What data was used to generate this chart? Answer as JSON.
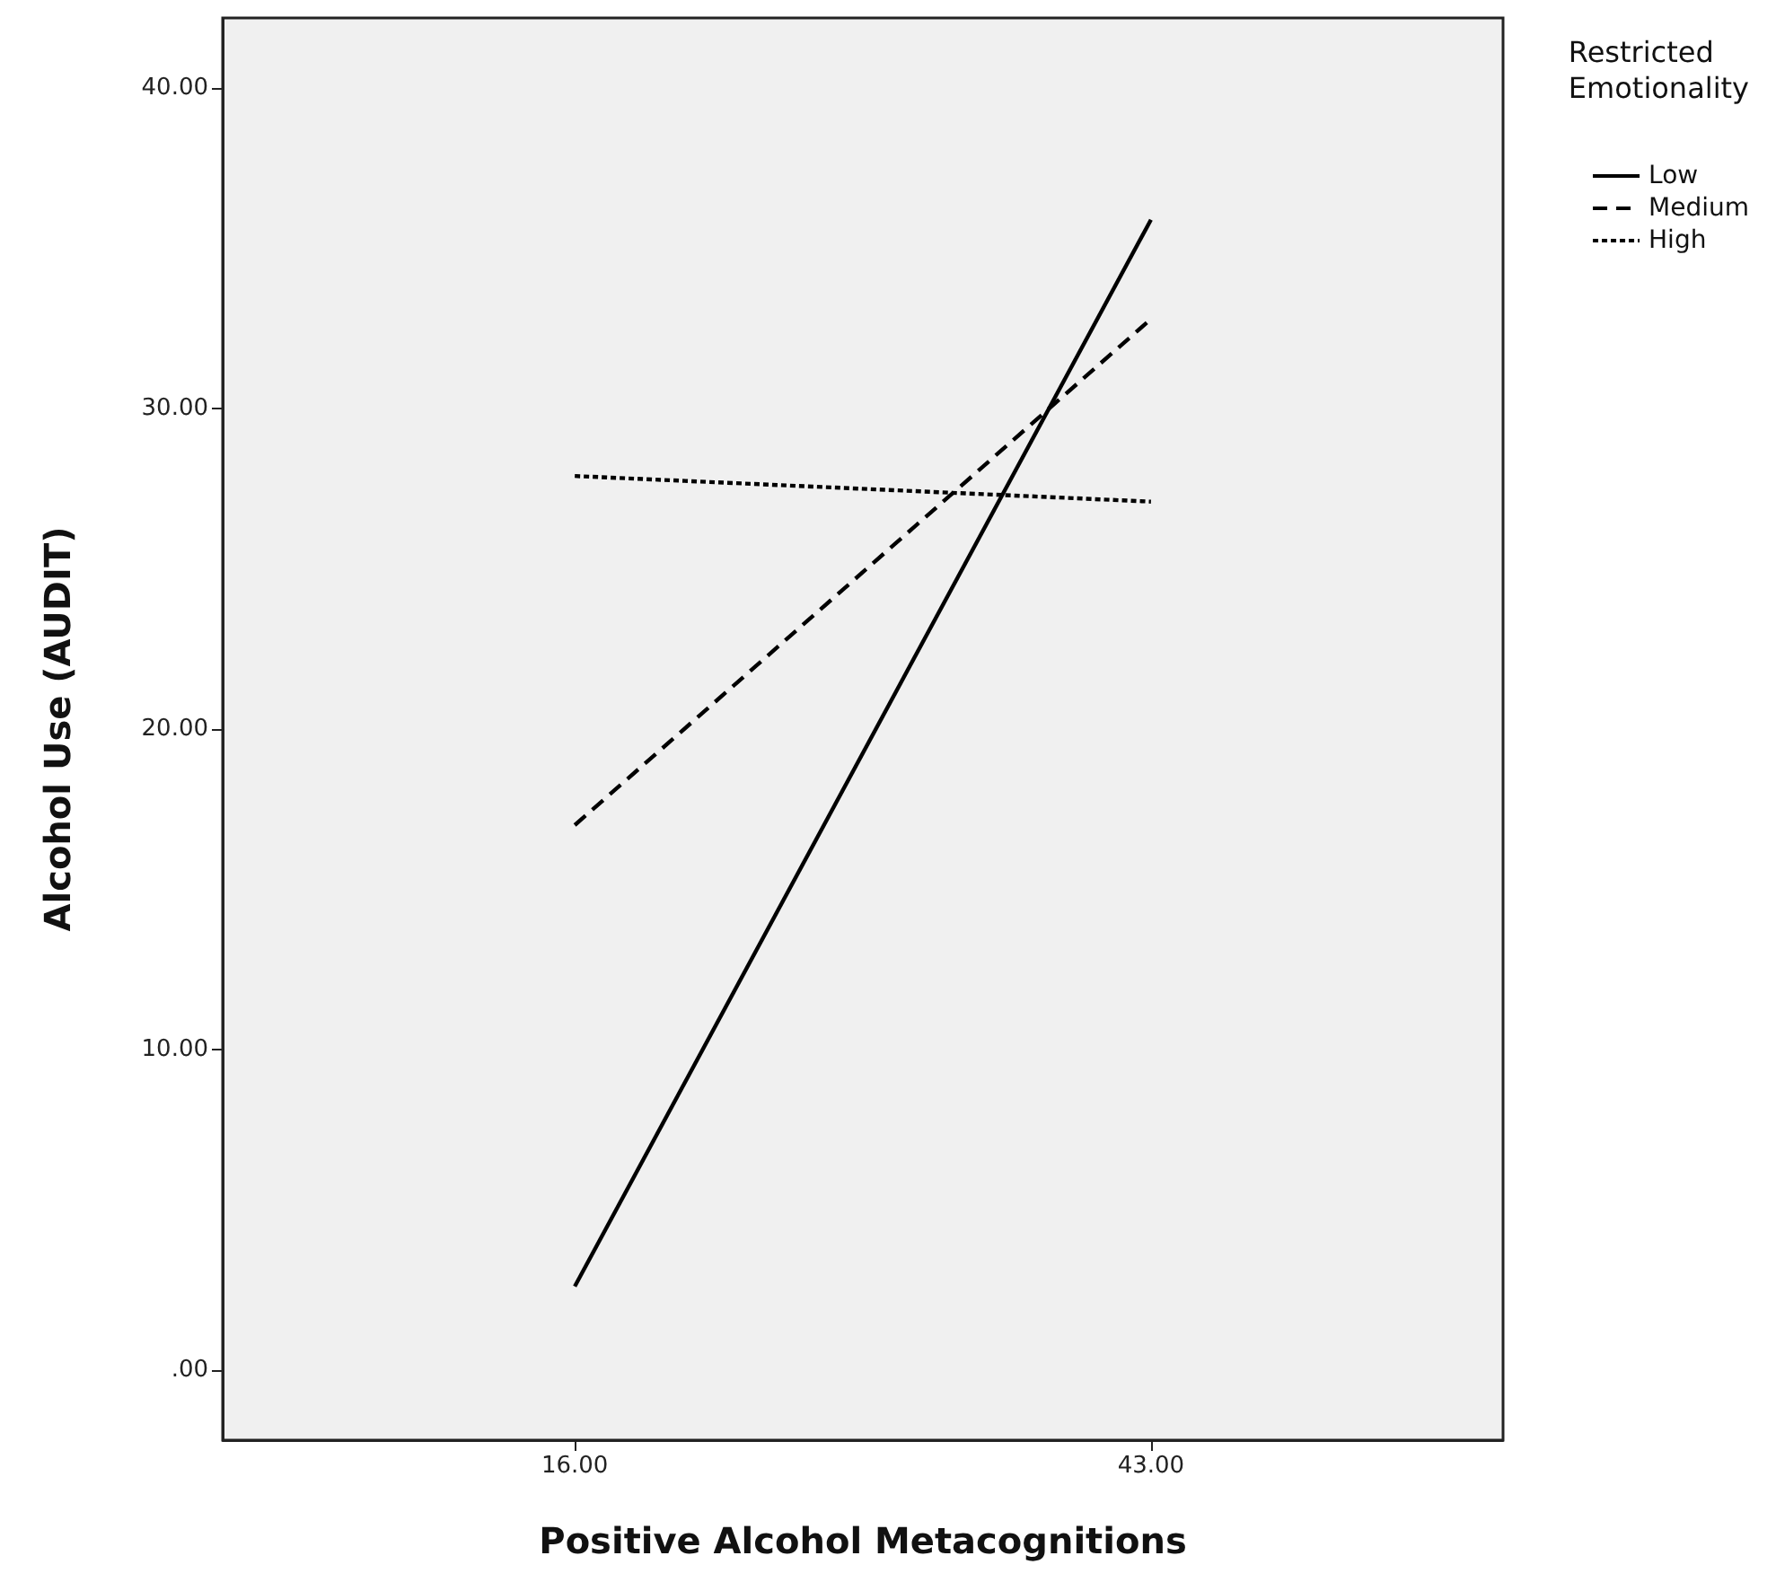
{
  "chart_data": {
    "type": "line",
    "xlabel": "Positive Alcohol Metacognitions",
    "ylabel": "Alcohol Use (AUDIT)",
    "legend_title": "Restricted\nEmotionality",
    "x": [
      16,
      43
    ],
    "series": [
      {
        "name": "Low",
        "color": "#000000",
        "line_style": "solid",
        "values": [
          2.6,
          35.9
        ]
      },
      {
        "name": "Medium",
        "color": "#000000",
        "line_style": "dashed",
        "values": [
          17.0,
          32.8
        ]
      },
      {
        "name": "High",
        "color": "#000000",
        "line_style": "dotted",
        "values": [
          27.9,
          27.1
        ]
      }
    ],
    "xlim": [
      -0.5,
      59.5
    ],
    "xticks": [
      {
        "value": 16,
        "label": "16.00"
      },
      {
        "value": 43,
        "label": "43.00"
      }
    ],
    "ylim": [
      -2.2,
      42.2
    ],
    "yticks": [
      {
        "value": 0,
        "label": ".00"
      },
      {
        "value": 10,
        "label": "10.00"
      },
      {
        "value": 20,
        "label": "20.00"
      },
      {
        "value": 30,
        "label": "30.00"
      },
      {
        "value": 40,
        "label": "40.00"
      }
    ],
    "grid": false,
    "legend": "right",
    "marker": "none"
  }
}
